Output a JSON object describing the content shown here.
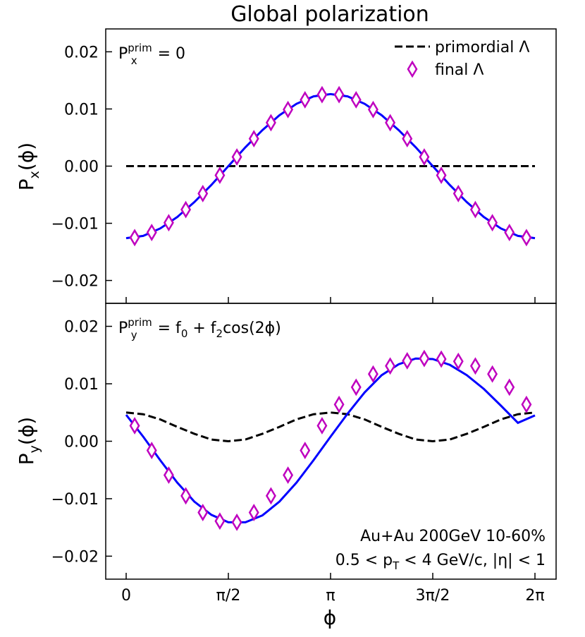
{
  "figure": {
    "title": "Global polarization",
    "xlabel": "ϕ",
    "colors": {
      "model": "#0000ff",
      "final": "#bf00bf",
      "primordial": "#000000"
    }
  },
  "chart_data": [
    {
      "type": "line",
      "panel": "top",
      "ylabel_main": "P",
      "ylabel_sub": "x",
      "ylabel_tail": "(ϕ)",
      "annotation": {
        "p": "P",
        "sup": "prim",
        "sub": "x",
        "rhs": " = 0"
      },
      "legend": {
        "placement": "top-right",
        "primordial": "primordial Λ",
        "final": "final Λ"
      },
      "xlim": [
        0,
        6.2832
      ],
      "ylim": [
        -0.024,
        0.024
      ],
      "yticks": [
        0.02,
        0.01,
        0.0,
        -0.01,
        -0.02
      ],
      "ytick_labels": [
        "0.02",
        "0.01",
        "0.00",
        "−0.01",
        "−0.02"
      ],
      "xticks": [
        0,
        1.5708,
        3.1416,
        4.7124,
        6.2832
      ],
      "xtick_labels": [
        "0",
        "π/2",
        "π",
        "3π/2",
        "2π"
      ],
      "series": [
        {
          "name": "primordial Λ",
          "style": "dashed",
          "x": [
            0,
            6.2832
          ],
          "y": [
            0,
            0
          ]
        },
        {
          "style": "line",
          "x": [
            0,
            0.2618,
            0.5236,
            0.7854,
            1.0472,
            1.309,
            1.5708,
            1.8326,
            2.0944,
            2.3562,
            2.618,
            2.8798,
            3.1416,
            3.4034,
            3.6652,
            3.927,
            4.1888,
            4.4506,
            4.7124,
            4.9742,
            5.236,
            5.4978,
            5.7596,
            6.0214,
            6.2832
          ],
          "y": [
            -0.0126,
            -0.0122,
            -0.0109,
            -0.0089,
            -0.0063,
            -0.0033,
            0.0,
            0.0033,
            0.0063,
            0.0089,
            0.0109,
            0.0122,
            0.0126,
            0.0122,
            0.0109,
            0.0089,
            0.0063,
            0.0033,
            0.0,
            -0.0033,
            -0.0063,
            -0.0089,
            -0.0109,
            -0.0122,
            -0.0126
          ]
        },
        {
          "name": "final Λ",
          "style": "diamond",
          "x": [
            0.1309,
            0.3927,
            0.6545,
            0.9163,
            1.1781,
            1.4399,
            1.7017,
            1.9635,
            2.2253,
            2.4871,
            2.7489,
            3.0107,
            3.2725,
            3.5343,
            3.7961,
            4.0579,
            4.3197,
            4.5815,
            4.8433,
            5.1051,
            5.3669,
            5.6287,
            5.8905,
            6.1523
          ],
          "y": [
            -0.0125,
            -0.0116,
            -0.0099,
            -0.0076,
            -0.0048,
            -0.0016,
            0.0016,
            0.0048,
            0.0076,
            0.0099,
            0.0116,
            0.0125,
            0.0125,
            0.0116,
            0.0099,
            0.0076,
            0.0048,
            0.0016,
            -0.0016,
            -0.0048,
            -0.0076,
            -0.0099,
            -0.0116,
            -0.0125
          ]
        }
      ]
    },
    {
      "type": "line",
      "panel": "bottom",
      "ylabel_main": "P",
      "ylabel_sub": "y",
      "ylabel_tail": "(ϕ)",
      "annotation": {
        "p": "P",
        "sup": "prim",
        "sub": "y",
        "eq": " = f",
        "s0": "0",
        "plus": " + f",
        "s2": "2",
        "tail": "cos(2ϕ)"
      },
      "note_lines": [
        "Au+Au 200GeV 10-60%"
      ],
      "note2": {
        "a": "0.5 < p",
        "sub": "T",
        "b": " < 4 GeV/c,  |η| < 1"
      },
      "xlim": [
        0,
        6.2832
      ],
      "ylim": [
        -0.024,
        0.024
      ],
      "yticks": [
        0.02,
        0.01,
        0.0,
        -0.01,
        -0.02
      ],
      "ytick_labels": [
        "0.02",
        "0.01",
        "0.00",
        "−0.01",
        "−0.02"
      ],
      "xticks": [
        0,
        1.5708,
        3.1416,
        4.7124,
        6.2832
      ],
      "xtick_labels": [
        "0",
        "π/2",
        "π",
        "3π/2",
        "2π"
      ],
      "series": [
        {
          "name": "primordial Λ",
          "style": "dashed",
          "x": [
            0,
            0.2618,
            0.5236,
            0.7854,
            1.0472,
            1.309,
            1.5708,
            1.8326,
            2.0944,
            2.3562,
            2.618,
            2.8798,
            3.1416,
            3.4034,
            3.6652,
            3.927,
            4.1888,
            4.4506,
            4.7124,
            4.9742,
            5.236,
            5.4978,
            5.7596,
            6.0214,
            6.2832
          ],
          "y": [
            0.005,
            0.0047,
            0.0038,
            0.0025,
            0.0013,
            0.0003,
            0.0,
            0.0003,
            0.0013,
            0.0025,
            0.0038,
            0.0047,
            0.005,
            0.0047,
            0.0038,
            0.0025,
            0.0013,
            0.0003,
            0.0,
            0.0003,
            0.0013,
            0.0025,
            0.0038,
            0.0047,
            0.005
          ]
        },
        {
          "style": "line",
          "x": [
            0,
            0.2618,
            0.5236,
            0.7854,
            1.0472,
            1.309,
            1.5708,
            1.8326,
            2.0944,
            2.3562,
            2.618,
            2.8798,
            3.1416,
            3.4034,
            3.6652,
            3.927,
            4.1888,
            4.4506,
            4.7124,
            4.9742,
            5.236,
            5.4978,
            5.7596,
            6.0214,
            6.2832
          ],
          "y": [
            0.0046,
            0.0008,
            -0.0033,
            -0.0072,
            -0.0105,
            -0.0128,
            -0.0141,
            -0.0141,
            -0.0129,
            -0.0105,
            -0.0072,
            -0.0033,
            0.0008,
            0.0048,
            0.0085,
            0.0115,
            0.0134,
            0.0144,
            0.0143,
            0.0133,
            0.0115,
            0.0091,
            0.0062,
            0.0032,
            0.0045
          ]
        },
        {
          "name": "final Λ",
          "style": "diamond",
          "x": [
            0.1309,
            0.3927,
            0.6545,
            0.9163,
            1.1781,
            1.4399,
            1.7017,
            1.9635,
            2.2253,
            2.4871,
            2.7489,
            3.0107,
            3.2725,
            3.5343,
            3.7961,
            4.0579,
            4.3197,
            4.5815,
            4.8433,
            5.1051,
            5.3669,
            5.6287,
            5.8905,
            6.1523
          ],
          "y": [
            0.0027,
            -0.0016,
            -0.0059,
            -0.0095,
            -0.0124,
            -0.0139,
            -0.0141,
            -0.0124,
            -0.0095,
            -0.0059,
            -0.0016,
            0.0027,
            0.0064,
            0.0094,
            0.0117,
            0.0131,
            0.014,
            0.0144,
            0.0143,
            0.0139,
            0.0131,
            0.0117,
            0.0094,
            0.0064
          ]
        }
      ]
    }
  ]
}
